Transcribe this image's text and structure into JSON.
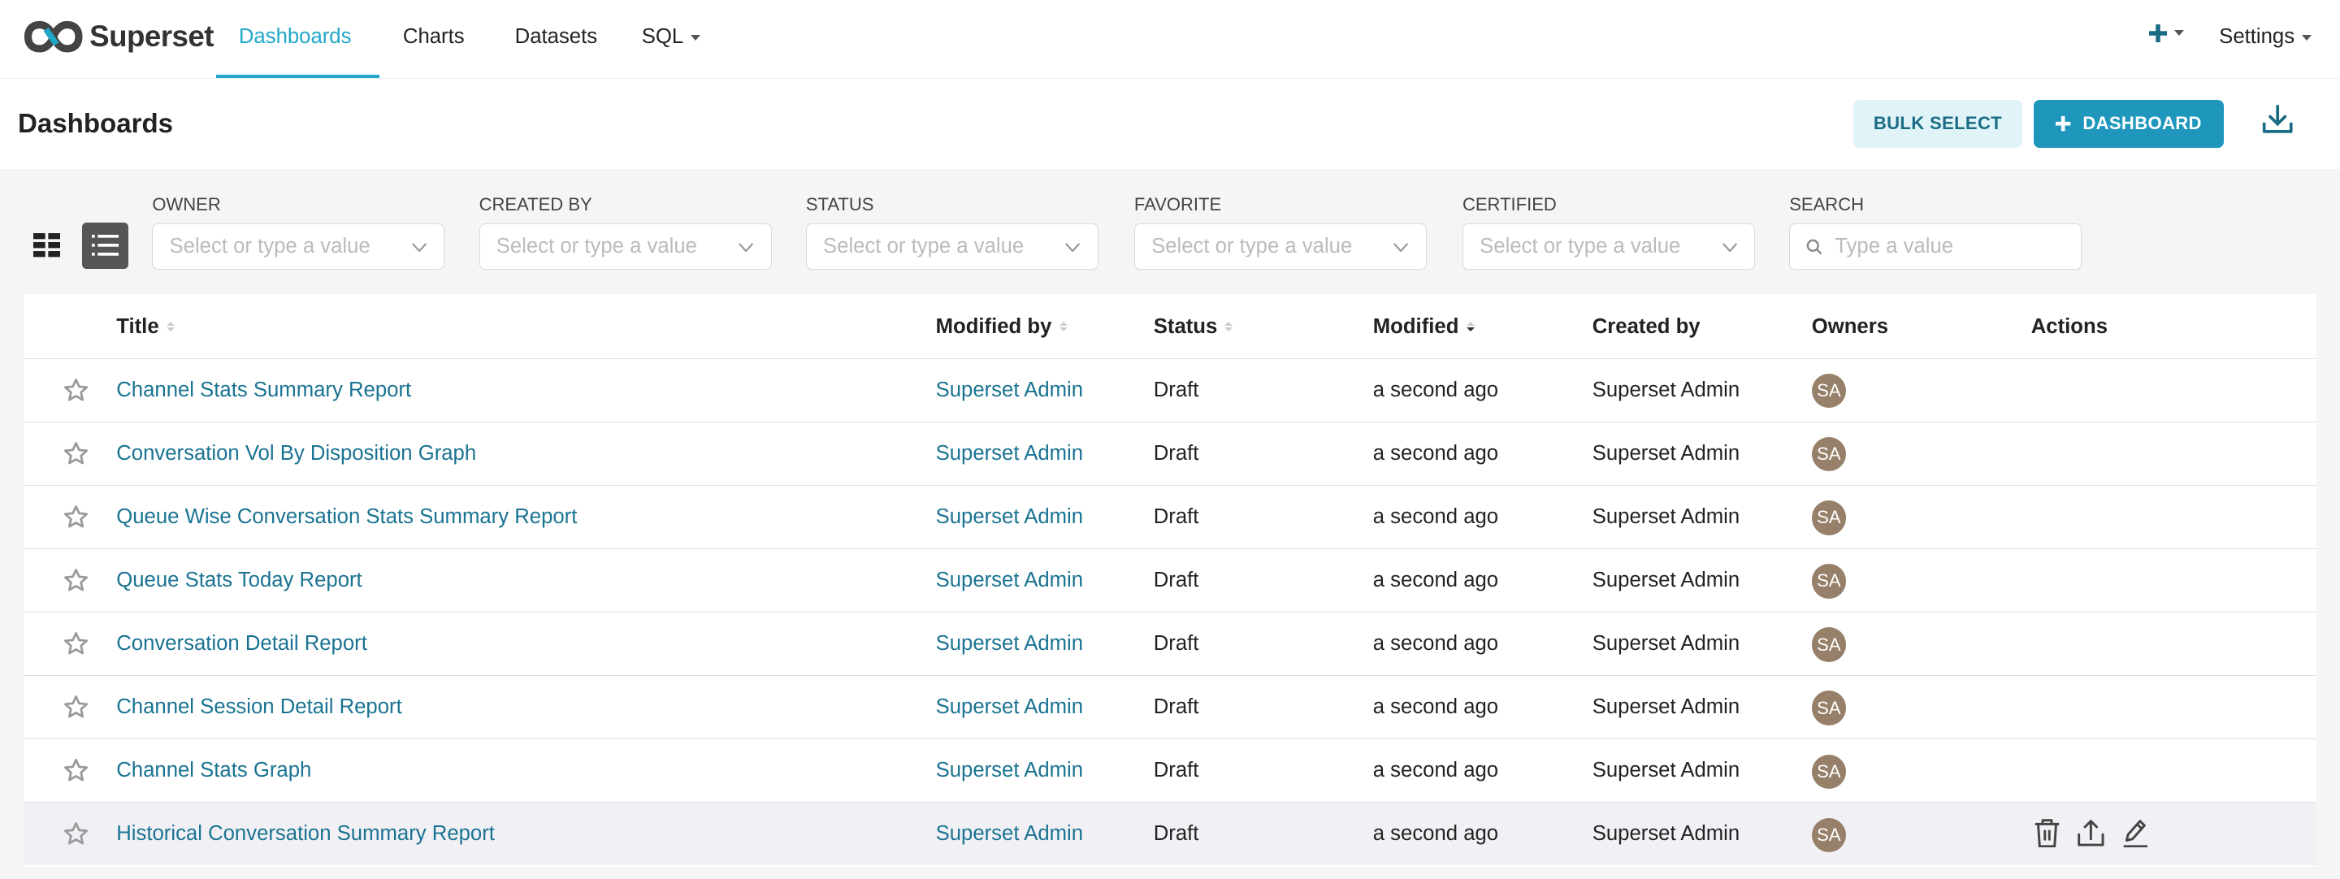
{
  "nav": {
    "brand": "Superset",
    "items": [
      {
        "label": "Dashboards",
        "active": true
      },
      {
        "label": "Charts"
      },
      {
        "label": "Datasets"
      },
      {
        "label": "SQL",
        "dropdown": true
      }
    ],
    "settings_label": "Settings",
    "plus_icon": "plus-icon"
  },
  "header": {
    "title": "Dashboards",
    "bulk_select_label": "BULK SELECT",
    "add_dashboard_label": "DASHBOARD",
    "download_icon": "download-icon"
  },
  "filters": [
    {
      "label": "OWNER",
      "placeholder": "Select or type a value"
    },
    {
      "label": "CREATED BY",
      "placeholder": "Select or type a value"
    },
    {
      "label": "STATUS",
      "placeholder": "Select or type a value"
    },
    {
      "label": "FAVORITE",
      "placeholder": "Select or type a value"
    },
    {
      "label": "CERTIFIED",
      "placeholder": "Select or type a value"
    }
  ],
  "search": {
    "label": "SEARCH",
    "placeholder": "Type a value"
  },
  "view_mode": "list",
  "table": {
    "columns": [
      "Title",
      "Modified by",
      "Status",
      "Modified",
      "Created by",
      "Owners",
      "Actions"
    ],
    "sorted_column": "Modified",
    "sort_direction": "descending",
    "rows": [
      {
        "title": "Channel Stats Summary Report",
        "modified_by": "Superset Admin",
        "status": "Draft",
        "modified": "a second ago",
        "created_by": "Superset Admin",
        "owner": "SA"
      },
      {
        "title": "Conversation Vol By Disposition Graph",
        "modified_by": "Superset Admin",
        "status": "Draft",
        "modified": "a second ago",
        "created_by": "Superset Admin",
        "owner": "SA"
      },
      {
        "title": "Queue Wise Conversation Stats Summary Report",
        "modified_by": "Superset Admin",
        "status": "Draft",
        "modified": "a second ago",
        "created_by": "Superset Admin",
        "owner": "SA"
      },
      {
        "title": "Queue Stats Today Report",
        "modified_by": "Superset Admin",
        "status": "Draft",
        "modified": "a second ago",
        "created_by": "Superset Admin",
        "owner": "SA"
      },
      {
        "title": "Conversation Detail Report",
        "modified_by": "Superset Admin",
        "status": "Draft",
        "modified": "a second ago",
        "created_by": "Superset Admin",
        "owner": "SA"
      },
      {
        "title": "Channel Session Detail Report",
        "modified_by": "Superset Admin",
        "status": "Draft",
        "modified": "a second ago",
        "created_by": "Superset Admin",
        "owner": "SA"
      },
      {
        "title": "Channel Stats Graph",
        "modified_by": "Superset Admin",
        "status": "Draft",
        "modified": "a second ago",
        "created_by": "Superset Admin",
        "owner": "SA"
      },
      {
        "title": "Historical Conversation Summary Report",
        "modified_by": "Superset Admin",
        "status": "Draft",
        "modified": "a second ago",
        "created_by": "Superset Admin",
        "owner": "SA",
        "hovered": true
      }
    ]
  },
  "colors": {
    "accent": "#20a7c9",
    "primary_button": "#1f97bd",
    "link": "#1a7392",
    "avatar": "#96806a"
  }
}
